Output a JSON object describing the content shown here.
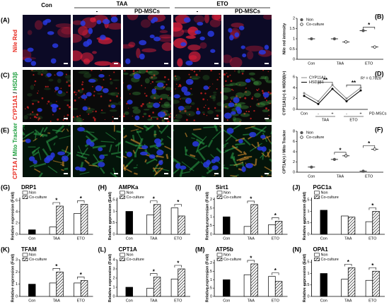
{
  "image_grid": {
    "headers": [
      "Con",
      "TAA",
      "ETO"
    ],
    "subheaders": [
      "-",
      "PD-MSCs",
      "-",
      "PD-MSCs"
    ],
    "rows": [
      {
        "label": "(A)",
        "stain": [
          {
            "text": "Nile Red",
            "color": "#e8281e"
          }
        ]
      },
      {
        "label": "(C)",
        "stain": [
          {
            "text": "CYP11A1",
            "color": "#e8281e"
          },
          {
            "text": " / ",
            "color": "#000000"
          },
          {
            "text": "HSD3β",
            "color": "#20a040"
          }
        ]
      },
      {
        "label": "(E)",
        "stain": [
          {
            "text": "CPT1A",
            "color": "#e8281e"
          },
          {
            "text": " / ",
            "color": "#000000"
          },
          {
            "text": "Mito Tracker",
            "color": "#20a040"
          }
        ]
      }
    ]
  },
  "chart_data": [
    {
      "type": "dot",
      "label": "(B)",
      "ylabel": "Nile red intensity",
      "categories": [
        "Con",
        "TAA",
        "ETO"
      ],
      "series": [
        {
          "name": "Non",
          "color": "#555555",
          "values": [
            1.0,
            1.0,
            1.4
          ]
        },
        {
          "name": "Co-culture",
          "color": "#000000",
          "values": [
            null,
            0.85,
            0.6
          ]
        }
      ],
      "ylim": [
        0,
        2
      ],
      "yticks": [
        0,
        0.5,
        1,
        1.5,
        2
      ],
      "annotations": [
        "*"
      ]
    },
    {
      "type": "line",
      "label": "(D)",
      "ylabel": "CYP11A1(+) & HSD3β(+)",
      "categories": [
        "Con",
        "-",
        "+",
        "-",
        "+"
      ],
      "x_groups": [
        "TAA",
        "ETO"
      ],
      "x_row_label": "PD-MSCs",
      "series": [
        {
          "name": "CYP11A1",
          "color": "#888888",
          "values": [
            3.0,
            1.5,
            4.5,
            2.0,
            4.0
          ]
        },
        {
          "name": "HSD3β1",
          "color": "#000000",
          "values": [
            2.5,
            1.0,
            3.8,
            1.5,
            3.5
          ]
        }
      ],
      "ylim": [
        0,
        6
      ],
      "yticks": [
        0,
        2,
        4,
        6
      ],
      "annotations": [
        "**",
        "**"
      ],
      "r2_label": "R² = 0.7828"
    },
    {
      "type": "dot",
      "label": "(F)",
      "ylabel": "CPT1A(+) / Mito Tracker",
      "categories": [
        "Con",
        "TAA",
        "ETO"
      ],
      "series": [
        {
          "name": "Non",
          "color": "#555555",
          "values": [
            1.0,
            2.5,
            0.2
          ]
        },
        {
          "name": "Co-culture",
          "color": "#000000",
          "values": [
            null,
            3.2,
            4.5
          ]
        }
      ],
      "ylim": [
        0,
        8
      ],
      "yticks": [
        0,
        2,
        4,
        6,
        8
      ],
      "annotations": [
        "*",
        "*"
      ]
    },
    {
      "type": "bar",
      "label": "(G)",
      "title": "DRP1",
      "ylabel": "Relative expression (Fold)",
      "categories": [
        "Con",
        "TAA",
        "ETO"
      ],
      "control_color": "#000000",
      "series": [
        {
          "name": "Non",
          "color": "#ffffff",
          "values": [
            0.8,
            1.3,
            3.7
          ]
        },
        {
          "name": "Co-culture",
          "color": "#000000",
          "hatch": true,
          "values": [
            null,
            5.0,
            5.3
          ]
        }
      ],
      "ylim": [
        0,
        6.5
      ],
      "yticks": [
        0,
        2,
        4,
        6
      ],
      "annotations": [
        "*",
        "*"
      ]
    },
    {
      "type": "bar",
      "label": "(H)",
      "title": "AMPKa",
      "ylabel": "Relative expression (Fold)",
      "categories": [
        "Con",
        "TAA",
        "ETO"
      ],
      "control_color": "#000000",
      "series": [
        {
          "name": "Non",
          "color": "#ffffff",
          "values": [
            1.0,
            0.85,
            1.15
          ]
        },
        {
          "name": "Co-culture",
          "color": "#000000",
          "hatch": true,
          "values": [
            null,
            1.3,
            0.8
          ]
        }
      ],
      "ylim": [
        0,
        1.6
      ],
      "yticks": [
        0,
        0.5,
        1,
        1.5
      ],
      "annotations": [
        "*",
        "*"
      ]
    },
    {
      "type": "bar",
      "label": "(I)",
      "title": "Sirt1",
      "ylabel": "Relative expression (Fold)",
      "categories": [
        "Con",
        "TAA",
        "ETO"
      ],
      "control_color": "#000000",
      "series": [
        {
          "name": "Non",
          "color": "#ffffff",
          "values": [
            1.0,
            0.45,
            0.55
          ]
        },
        {
          "name": "Co-culture",
          "color": "#000000",
          "hatch": true,
          "values": [
            null,
            1.7,
            0.75
          ]
        }
      ],
      "ylim": [
        0,
        2.1
      ],
      "yticks": [
        0,
        0.5,
        1,
        1.5,
        2
      ],
      "annotations": [
        "*",
        "*"
      ]
    },
    {
      "type": "bar",
      "label": "(J)",
      "title": "PGC1a",
      "ylabel": "Relative expression (Fold)",
      "categories": [
        "Con",
        "TAA",
        "ETO"
      ],
      "control_color": "#000000",
      "series": [
        {
          "name": "Non",
          "color": "#ffffff",
          "values": [
            1.05,
            0.8,
            0.55
          ]
        },
        {
          "name": "Co-culture",
          "color": "#000000",
          "hatch": true,
          "values": [
            null,
            0.75,
            1.0
          ]
        }
      ],
      "ylim": [
        0,
        1.6
      ],
      "yticks": [
        0,
        0.5,
        1,
        1.5
      ],
      "annotations": [
        "*"
      ]
    },
    {
      "type": "bar",
      "label": "(K)",
      "title": "TFAM",
      "ylabel": "Relative expression (Fold)",
      "categories": [
        "Con",
        "TAA",
        "ETO"
      ],
      "control_color": "#000000",
      "series": [
        {
          "name": "Non",
          "color": "#ffffff",
          "values": [
            1.0,
            1.1,
            1.1
          ]
        },
        {
          "name": "Co-culture",
          "color": "#000000",
          "hatch": true,
          "values": [
            null,
            2.0,
            1.3
          ]
        }
      ],
      "ylim": [
        0,
        3
      ],
      "yticks": [
        0,
        1,
        2,
        3
      ],
      "annotations": [
        "*",
        "*"
      ]
    },
    {
      "type": "bar",
      "label": "(L)",
      "title": "CPT1A",
      "ylabel": "Relative expression (Fold)",
      "categories": [
        "Con",
        "TAA",
        "ETO"
      ],
      "control_color": "#000000",
      "series": [
        {
          "name": "Non",
          "color": "#ffffff",
          "values": [
            1.0,
            0.9,
            1.9
          ]
        },
        {
          "name": "Co-culture",
          "color": "#000000",
          "hatch": true,
          "values": [
            null,
            2.1,
            3.0
          ]
        }
      ],
      "ylim": [
        0,
        4
      ],
      "yticks": [
        0,
        1,
        2,
        3,
        4
      ],
      "annotations": [
        "*",
        "*"
      ]
    },
    {
      "type": "bar",
      "label": "(M)",
      "title": "ATP5b",
      "ylabel": "Relative expression (Fold)",
      "categories": [
        "Con",
        "TAA",
        "ETO"
      ],
      "control_color": "#000000",
      "series": [
        {
          "name": "Non",
          "color": "#ffffff",
          "values": [
            1.0,
            1.3,
            1.2
          ]
        },
        {
          "name": "Co-culture",
          "color": "#000000",
          "hatch": true,
          "values": [
            null,
            1.95,
            0.9
          ]
        }
      ],
      "ylim": [
        0,
        2.2
      ],
      "yticks": [
        0,
        0.5,
        1,
        1.5,
        2
      ],
      "annotations": [
        "*",
        "*"
      ]
    },
    {
      "type": "bar",
      "label": "(N)",
      "title": "OPA1",
      "ylabel": "Relative expression (Fold)",
      "categories": [
        "Con",
        "TAA",
        "ETO"
      ],
      "control_color": "#000000",
      "series": [
        {
          "name": "Non",
          "color": "#ffffff",
          "values": [
            1.0,
            0.75,
            0.7
          ]
        },
        {
          "name": "Co-culture",
          "color": "#000000",
          "hatch": true,
          "values": [
            null,
            1.25,
            1.1
          ]
        }
      ],
      "ylim": [
        0,
        1.6
      ],
      "yticks": [
        0,
        0.5,
        1,
        1.5
      ],
      "annotations": [
        "*",
        "*"
      ]
    }
  ]
}
